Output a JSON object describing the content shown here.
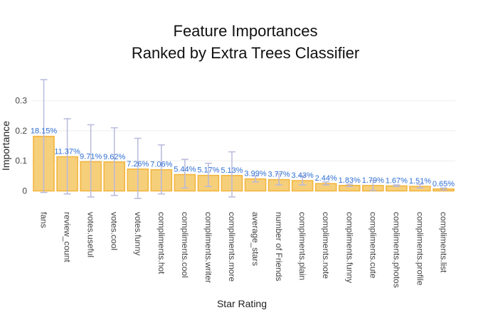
{
  "chart_data": {
    "type": "bar",
    "title_lines": [
      "Feature Importances",
      "Ranked by Extra Trees Classifier"
    ],
    "xlabel": "Star Rating",
    "ylabel": "Importance",
    "ylim": [
      0,
      0.37
    ],
    "yticks": [
      0,
      0.1,
      0.2,
      0.3
    ],
    "ytick_labels": [
      "0",
      "0.1",
      "0.2",
      "0.3"
    ],
    "grid": true,
    "categories": [
      "fans",
      "review_count",
      "votes.useful",
      "votes.cool",
      "votes.funny",
      "compliments.hot",
      "compliments.cool",
      "compliments.writer",
      "compliments.more",
      "average_stars",
      "number of Friends",
      "compliments.plain",
      "compliments.note",
      "compliments.funny",
      "compliments.cute",
      "compliments.photos",
      "compliments.profile",
      "compliments.list"
    ],
    "values": [
      0.1815,
      0.1137,
      0.0971,
      0.0962,
      0.0726,
      0.0706,
      0.0544,
      0.0517,
      0.0513,
      0.0399,
      0.0377,
      0.0343,
      0.0244,
      0.0183,
      0.0179,
      0.0167,
      0.0151,
      0.0065
    ],
    "value_labels": [
      "18.15%",
      "11.37%",
      "9.71%",
      "9.62%",
      "7.26%",
      "7.06%",
      "5.44%",
      "5.17%",
      "5.13%",
      "3.99%",
      "3.77%",
      "3.43%",
      "2.44%",
      "1.83%",
      "1.79%",
      "1.67%",
      "1.51%",
      "0.65%"
    ],
    "error_low": [
      -0.005,
      -0.01,
      -0.02,
      -0.015,
      -0.025,
      -0.01,
      0.01,
      0.015,
      -0.02,
      0.03,
      0.02,
      0.02,
      0.02,
      0.015,
      0.002,
      0.015,
      0.01,
      0.003
    ],
    "error_high": [
      0.37,
      0.24,
      0.22,
      0.21,
      0.175,
      0.153,
      0.105,
      0.092,
      0.13,
      0.05,
      0.057,
      0.05,
      0.03,
      0.023,
      0.035,
      0.02,
      0.022,
      0.01
    ],
    "colors": {
      "bar_fill": "#f6cf7b",
      "bar_stroke": "#f2b43a",
      "error_bar": "#b8b9dc",
      "value_label": "#2f6fd4",
      "grid": "#eeeeee"
    }
  }
}
